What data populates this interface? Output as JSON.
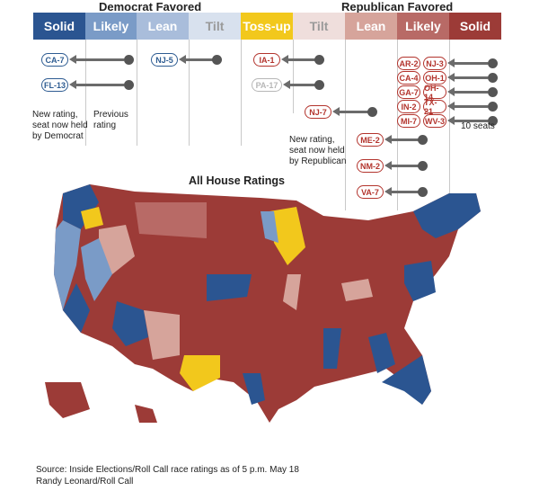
{
  "header": {
    "dem_favored": "Democrat Favored",
    "rep_favored": "Republican Favored"
  },
  "categories": [
    {
      "label": "Solid",
      "color": "#2b5591"
    },
    {
      "label": "Likely",
      "color": "#7a9bc7"
    },
    {
      "label": "Lean",
      "color": "#a9bddb"
    },
    {
      "label": "Tilt",
      "color": "#d8e1ee"
    },
    {
      "label": "Toss-up",
      "color": "#f2c81c"
    },
    {
      "label": "Tilt",
      "color": "#efdedc"
    },
    {
      "label": "Lean",
      "color": "#d6a49b"
    },
    {
      "label": "Likely",
      "color": "#b86a66"
    },
    {
      "label": "Solid",
      "color": "#9c3b37"
    }
  ],
  "races": {
    "ca7": "CA-7",
    "fl13": "FL-13",
    "nj5": "NJ-5",
    "ia1": "IA-1",
    "pa17": "PA-17",
    "nj7": "NJ-7",
    "me2": "ME-2",
    "nm2": "NM-2",
    "va7": "VA-7",
    "solid_r_col1": [
      "AR-2",
      "CA-4",
      "GA-7",
      "IN-2",
      "MI-7"
    ],
    "solid_r_col2": [
      "NJ-3",
      "OH-1",
      "OH-14",
      "TX-21",
      "WV-3"
    ]
  },
  "notes": {
    "dem_new": "New rating, seat now held by Democrat",
    "previous": "Previous rating",
    "rep_new": "New rating, seat now held by Republican",
    "ten_seats": "10 seats"
  },
  "map": {
    "title": "All House Ratings"
  },
  "source": {
    "line1": "Source: Inside Elections/Roll Call race ratings as of 5 p.m. May 18",
    "line2": "Randy Leonard/Roll Call"
  }
}
